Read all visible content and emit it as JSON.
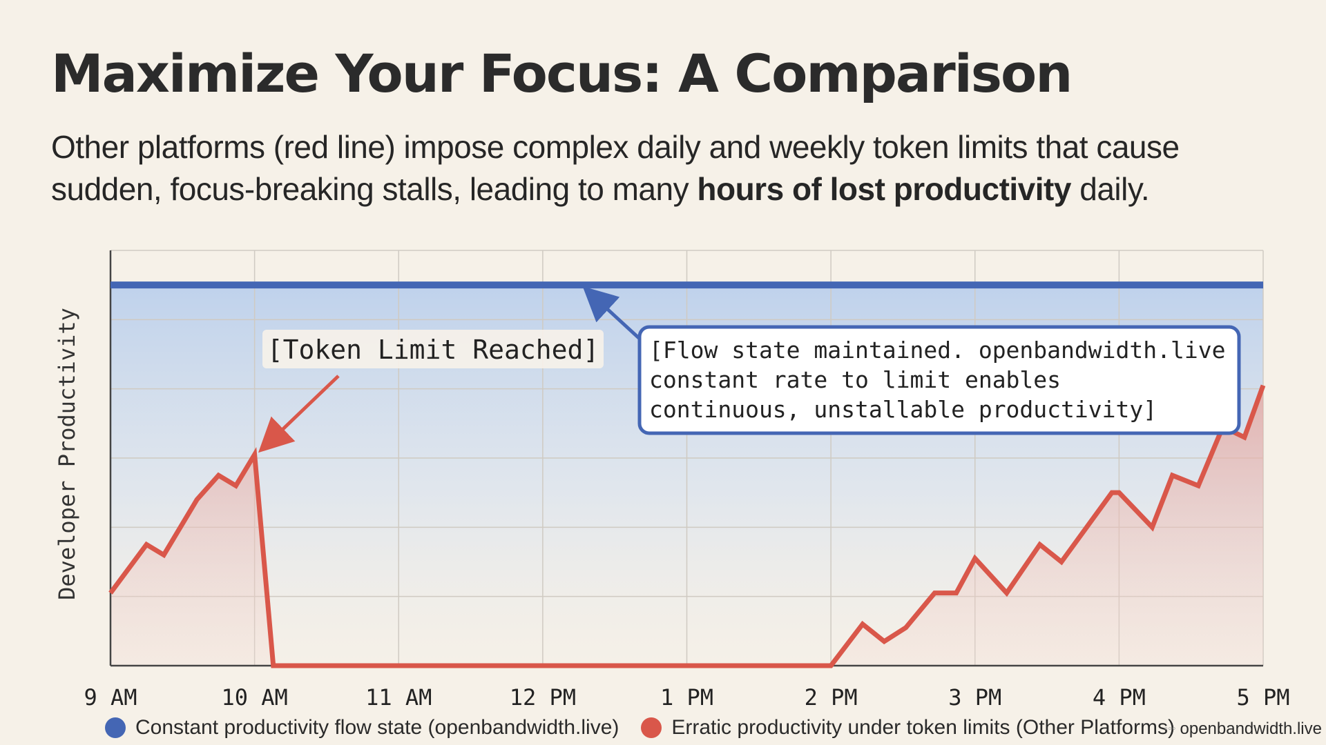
{
  "title": "Maximize Your Focus: A Comparison",
  "subtitle_pre": "Other platforms (red line) impose complex daily and weekly token limits that cause sudden, focus-breaking stalls, leading to many ",
  "subtitle_bold": "hours of lost productivity",
  "subtitle_post": " daily.",
  "brand": "openbandwidth.live",
  "colors": {
    "blue": "#4466b4",
    "red": "#d9574a",
    "background": "#f6f1e8"
  },
  "chart_data": {
    "type": "line",
    "ylabel": "Developer Productivity",
    "xlabel": "",
    "x_ticks": [
      "9 AM",
      "10 AM",
      "11 AM",
      "12 PM",
      "1 PM",
      "2 PM",
      "3 PM",
      "4 PM",
      "5 PM"
    ],
    "xlim": [
      9,
      17
    ],
    "ylim": [
      0,
      6
    ],
    "grid": true,
    "legend_position": "bottom",
    "series": [
      {
        "name": "Constant productivity flow state (openbandwidth.live)",
        "color": "#4466b4",
        "x": [
          9,
          17
        ],
        "y": [
          5.5,
          5.5
        ]
      },
      {
        "name": "Erratic productivity under token limits (Other Platforms)",
        "color": "#d9574a",
        "x": [
          9,
          9.25,
          9.37,
          9.6,
          9.75,
          9.87,
          10,
          10.13,
          11,
          12,
          13,
          14,
          14.22,
          14.37,
          14.52,
          14.72,
          14.87,
          15,
          15.22,
          15.45,
          15.6,
          15.95,
          16,
          16.23,
          16.37,
          16.55,
          16.72,
          16.87,
          17
        ],
        "y": [
          1.05,
          1.75,
          1.6,
          2.4,
          2.75,
          2.6,
          3.05,
          0,
          0,
          0,
          0,
          0,
          0.6,
          0.35,
          0.55,
          1.05,
          1.05,
          1.55,
          1.05,
          1.75,
          1.5,
          2.5,
          2.5,
          2.0,
          2.75,
          2.6,
          3.45,
          3.3,
          4.05
        ]
      }
    ],
    "annotations": [
      {
        "text": "[Token Limit Reached]",
        "x": 10,
        "y": 3.05
      },
      {
        "text_lines": [
          "[Flow state maintained. openbandwidth.live",
          "constant rate to limit enables",
          "continuous, unstallable productivity]"
        ],
        "x": 12.3,
        "y": 5.5
      }
    ]
  }
}
